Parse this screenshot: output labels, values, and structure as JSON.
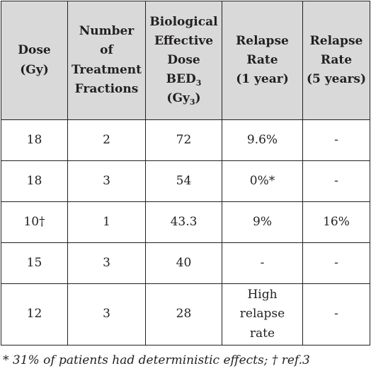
{
  "table": {
    "headers": [
      {
        "lines": [
          "Dose",
          "(Gy)"
        ]
      },
      {
        "lines": [
          "Number",
          "of",
          "Treatment",
          "Fractions"
        ]
      },
      {
        "lines": [
          "Biological",
          "Effective",
          "Dose"
        ],
        "bed_label": "BED",
        "bed_sub": "3",
        "unit_open": "(Gy",
        "unit_sub": "3",
        "unit_close": ")"
      },
      {
        "lines": [
          "Relapse",
          "Rate",
          "(1 year)"
        ]
      },
      {
        "lines": [
          "Relapse",
          "Rate",
          "(5 years)"
        ]
      }
    ],
    "rows": [
      [
        "18",
        "2",
        "72",
        "9.6%",
        "-"
      ],
      [
        "18",
        "3",
        "54",
        "0%*",
        "-"
      ],
      [
        "10†",
        "1",
        "43.3",
        "9%",
        "16%"
      ],
      [
        "15",
        "3",
        "40",
        "-",
        "-"
      ],
      [
        "12",
        "3",
        "28",
        [
          "High",
          "relapse",
          "rate"
        ],
        "-"
      ]
    ]
  },
  "footnote": "* 31% of patients had deterministic effects; † ref.3"
}
